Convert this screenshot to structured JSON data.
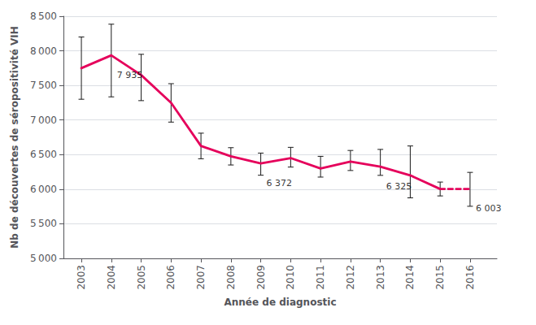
{
  "chart_data": {
    "type": "line",
    "x": [
      2003,
      2004,
      2005,
      2006,
      2007,
      2008,
      2009,
      2010,
      2011,
      2012,
      2013,
      2014,
      2015,
      2016
    ],
    "series": [
      {
        "color": "#E5005B",
        "line_style": "solid",
        "values": [
          7750,
          7935,
          7650,
          7250,
          6625,
          6475,
          6372,
          6450,
          6300,
          6400,
          6325,
          6200,
          6003,
          null
        ],
        "err_low": [
          450,
          600,
          370,
          280,
          185,
          125,
          170,
          130,
          125,
          130,
          125,
          325,
          100,
          null
        ],
        "err_high": [
          450,
          450,
          300,
          275,
          185,
          125,
          150,
          155,
          175,
          160,
          250,
          425,
          100,
          null
        ]
      },
      {
        "color": "#E5005B",
        "line_style": "dashed",
        "values": [
          null,
          null,
          null,
          null,
          null,
          null,
          null,
          null,
          null,
          null,
          null,
          null,
          6003,
          6003
        ],
        "err_low": [
          null,
          null,
          null,
          null,
          null,
          null,
          null,
          null,
          null,
          null,
          null,
          null,
          null,
          250
        ],
        "err_high": [
          null,
          null,
          null,
          null,
          null,
          null,
          null,
          null,
          null,
          null,
          null,
          null,
          null,
          240
        ]
      }
    ],
    "errorbar_color": "#1a1a1a",
    "annotations": [
      {
        "x": 2004,
        "y": 7935,
        "text": "7 935"
      },
      {
        "x": 2009,
        "y": 6372,
        "text": "6 372"
      },
      {
        "x": 2013,
        "y": 6325,
        "text": "6 325"
      },
      {
        "x": 2016,
        "y": 6003,
        "text": "6 003"
      }
    ],
    "xlabel": "Année de diagnostic",
    "ylabel": "Nb de découvertes de séropositivité VIH",
    "xlim": [
      2002.4,
      2016.9
    ],
    "xticks": [
      2003,
      2004,
      2005,
      2006,
      2007,
      2008,
      2009,
      2010,
      2011,
      2012,
      2013,
      2014,
      2015,
      2016
    ],
    "ylim": [
      5000,
      8500
    ],
    "yticks": [
      {
        "value": 5000,
        "label": "5 000"
      },
      {
        "value": 5500,
        "label": "5 500"
      },
      {
        "value": 6000,
        "label": "6 000"
      },
      {
        "value": 6500,
        "label": "6 500"
      },
      {
        "value": 7000,
        "label": "7 000"
      },
      {
        "value": 7500,
        "label": "7 500"
      },
      {
        "value": 8000,
        "label": "8 000"
      },
      {
        "value": 8500,
        "label": "8 500"
      }
    ],
    "grid": true
  }
}
